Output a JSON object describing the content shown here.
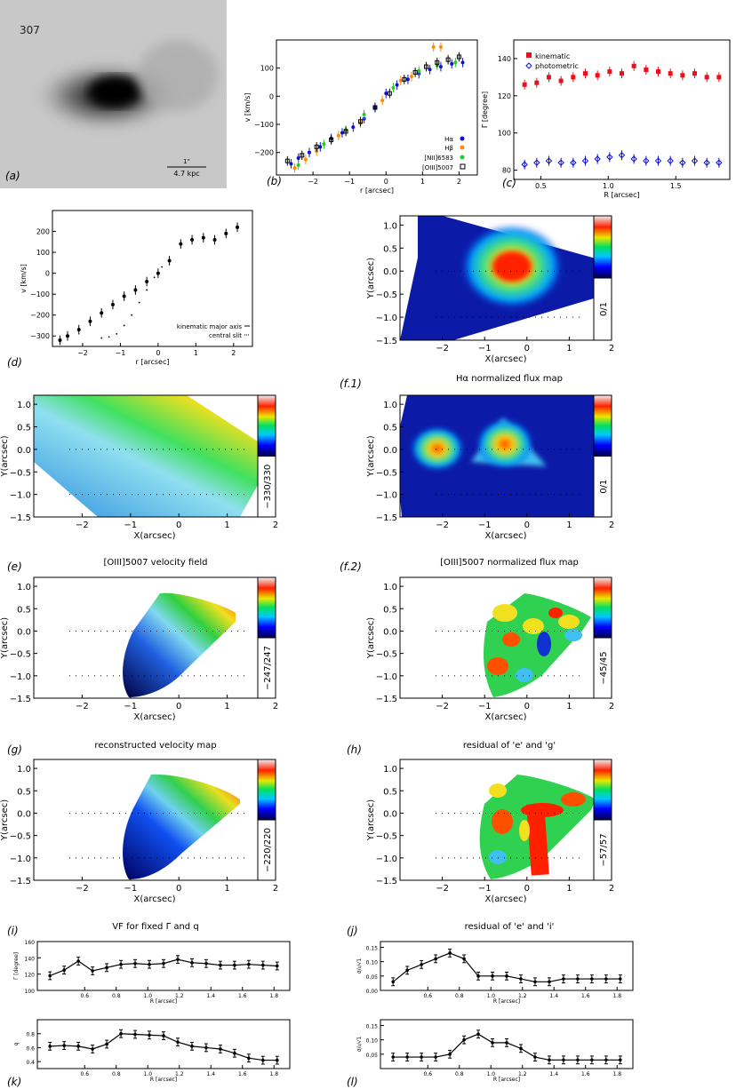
{
  "colors": {
    "red": "#e8101a",
    "orange": "#ff8c00",
    "green": "#22cc22",
    "blue": "#1010d0",
    "black": "#000000"
  },
  "panel_labels": {
    "a": "(a)",
    "b": "(b)",
    "c": "(c)",
    "d": "(d)",
    "f1": "(f.1)",
    "e": "(e)",
    "f2": "(f.2)",
    "g": "(g)",
    "h": "(h)",
    "i": "(i)",
    "j": "(j)",
    "k": "(k)",
    "l": "(l)"
  },
  "image_a": {
    "object_id": "307",
    "scale_top": "1\"",
    "scale_bottom": "4.7 kpc"
  },
  "map_titles": {
    "f1": "Hα normalized flux map",
    "e": "[OIII]5007 velocity field",
    "f2": "[OIII]5007 normalized flux map",
    "g": "reconstructed velocity map",
    "h": "residual of 'e' and 'g'",
    "i": "VF for fixed Γ and q",
    "j": "residual of 'e' and 'i'"
  },
  "map_labels": {
    "xlabel": "X(arcsec)",
    "ylabel": "Y(arcsec)",
    "xticks": [
      "−2",
      "−1",
      "0",
      "1",
      "2"
    ],
    "yticks": [
      "1.0",
      "0.5",
      "0.0",
      "−0.5",
      "−1.0",
      "−1.5"
    ]
  },
  "colorbar_ranges": {
    "f1": "0/1",
    "e": "−330/330",
    "f2": "0/1",
    "g": "−247/247",
    "h": "−45/45",
    "i": "−220/220",
    "j": "−57/57"
  },
  "chart_data": [
    {
      "id": "b",
      "type": "scatter",
      "xlabel": "r [arcsec]",
      "ylabel": "v [km/s]",
      "xlim": [
        -3,
        2.5
      ],
      "ylim": [
        -280,
        200
      ],
      "xticks": [
        "−2",
        "−1",
        "0",
        "1",
        "2"
      ],
      "yticks": [
        "−200",
        "−100",
        "0",
        "100"
      ],
      "series": [
        {
          "name": "Hα",
          "color": "#1010d0",
          "x": [
            -2.6,
            -2.4,
            -2.1,
            -1.8,
            -1.5,
            -1.2,
            -0.9,
            -0.6,
            -0.3,
            0.0,
            0.3,
            0.6,
            0.9,
            1.2,
            1.5,
            1.8,
            2.1
          ],
          "y": [
            -240,
            -220,
            -200,
            -180,
            -150,
            -130,
            -110,
            -80,
            -40,
            10,
            40,
            60,
            80,
            95,
            105,
            115,
            120
          ]
        },
        {
          "name": "Hβ",
          "color": "#ff8c00",
          "x": [
            -2.5,
            -2.2,
            -1.9,
            -1.3,
            -0.7,
            -0.1,
            0.4,
            0.7,
            1.3,
            1.5
          ],
          "y": [
            -255,
            -225,
            -195,
            -140,
            -95,
            -15,
            55,
            70,
            175,
            175
          ]
        },
        {
          "name": "[NII]6583",
          "color": "#22cc22",
          "x": [
            -2.4,
            -1.7,
            -1.1,
            -0.6,
            0.2,
            0.9,
            1.4,
            1.9
          ],
          "y": [
            -245,
            -170,
            -120,
            -65,
            30,
            90,
            110,
            120
          ]
        },
        {
          "name": "[OIII]5007",
          "color": "#000000",
          "x": [
            -2.7,
            -2.3,
            -1.9,
            -1.5,
            -1.1,
            -0.7,
            -0.3,
            0.1,
            0.5,
            0.8,
            1.1,
            1.4,
            1.7,
            2.0
          ],
          "y": [
            -230,
            -210,
            -180,
            -155,
            -125,
            -90,
            -40,
            10,
            60,
            85,
            105,
            120,
            130,
            140
          ]
        }
      ]
    },
    {
      "id": "c",
      "type": "scatter",
      "xlabel": "R [arcsec]",
      "ylabel": "Γ [degree]",
      "xlim": [
        0.3,
        1.9
      ],
      "ylim": [
        75,
        150
      ],
      "xticks": [
        "0.5",
        "1.0",
        "1.5"
      ],
      "yticks": [
        "80",
        "100",
        "120",
        "140"
      ],
      "series": [
        {
          "name": "kinematic",
          "color": "#e8101a",
          "x": [
            0.38,
            0.47,
            0.56,
            0.65,
            0.74,
            0.83,
            0.92,
            1.01,
            1.1,
            1.19,
            1.28,
            1.37,
            1.46,
            1.55,
            1.64,
            1.73,
            1.82
          ],
          "y": [
            126,
            127,
            130,
            128,
            130,
            132,
            131,
            133,
            132,
            136,
            134,
            133,
            132,
            131,
            132,
            130,
            130
          ]
        },
        {
          "name": "photometric",
          "color": "#1010d0",
          "x": [
            0.38,
            0.47,
            0.56,
            0.65,
            0.74,
            0.83,
            0.92,
            1.01,
            1.1,
            1.19,
            1.28,
            1.37,
            1.46,
            1.55,
            1.64,
            1.73,
            1.82
          ],
          "y": [
            83,
            84,
            85,
            84,
            84,
            85,
            86,
            87,
            88,
            86,
            85,
            85,
            85,
            84,
            85,
            84,
            84
          ]
        }
      ]
    },
    {
      "id": "d",
      "type": "scatter",
      "xlabel": "r [arcsec]",
      "ylabel": "v [km/s]",
      "xlim": [
        -2.8,
        2.5
      ],
      "ylim": [
        -350,
        300
      ],
      "xticks": [
        "−2",
        "−1",
        "0",
        "1",
        "2"
      ],
      "yticks": [
        "−300",
        "−200",
        "−100",
        "0",
        "100",
        "200"
      ],
      "series": [
        {
          "name": "kinematic major axis",
          "color": "#000000",
          "x": [
            -2.6,
            -2.4,
            -2.1,
            -1.8,
            -1.5,
            -1.2,
            -0.9,
            -0.6,
            -0.3,
            0.0,
            0.3,
            0.6,
            0.9,
            1.2,
            1.5,
            1.8,
            2.1
          ],
          "y": [
            -320,
            -300,
            -270,
            -230,
            -190,
            -150,
            -110,
            -80,
            -40,
            0,
            60,
            140,
            160,
            170,
            160,
            190,
            220
          ]
        },
        {
          "name": "central slit",
          "color": "#000000",
          "x": [
            -1.5,
            -1.3,
            -1.1,
            -0.9,
            -0.7,
            -0.5,
            -0.3,
            -0.1,
            0.1,
            0.3
          ],
          "y": [
            -310,
            -305,
            -290,
            -250,
            -200,
            -140,
            -80,
            -20,
            30,
            60
          ]
        }
      ]
    },
    {
      "id": "k1",
      "type": "line",
      "xlabel": "R [arcsec]",
      "ylabel": "Γ [degree]",
      "xlim": [
        0.3,
        1.9
      ],
      "ylim": [
        100,
        160
      ],
      "xticks": [
        "0.6",
        "0.8",
        "1.0",
        "1.2",
        "1.4",
        "1.6",
        "1.8"
      ],
      "yticks": [
        "100",
        "120",
        "140",
        "160"
      ],
      "x": [
        0.38,
        0.47,
        0.56,
        0.65,
        0.74,
        0.83,
        0.92,
        1.01,
        1.1,
        1.19,
        1.28,
        1.37,
        1.46,
        1.55,
        1.64,
        1.73,
        1.82
      ],
      "y": [
        118,
        125,
        136,
        124,
        128,
        132,
        133,
        132,
        133,
        138,
        134,
        133,
        131,
        131,
        132,
        131,
        130
      ]
    },
    {
      "id": "k2",
      "type": "line",
      "xlabel": "R [arcsec]",
      "ylabel": "q",
      "xlim": [
        0.3,
        1.9
      ],
      "ylim": [
        0.3,
        1.0
      ],
      "xticks": [
        "0.6",
        "0.8",
        "1.0",
        "1.2",
        "1.4",
        "1.6",
        "1.8"
      ],
      "yticks": [
        "0.4",
        "0.6",
        "0.8"
      ],
      "x": [
        0.38,
        0.47,
        0.56,
        0.65,
        0.74,
        0.83,
        0.92,
        1.01,
        1.1,
        1.19,
        1.28,
        1.37,
        1.46,
        1.55,
        1.64,
        1.73,
        1.82
      ],
      "y": [
        0.62,
        0.63,
        0.62,
        0.58,
        0.65,
        0.8,
        0.79,
        0.78,
        0.77,
        0.68,
        0.62,
        0.6,
        0.58,
        0.52,
        0.45,
        0.42,
        0.42
      ]
    },
    {
      "id": "l1",
      "type": "line",
      "xlabel": "R [arcsec]",
      "ylabel": "σ/ι/√1",
      "xlim": [
        0.3,
        1.9
      ],
      "ylim": [
        0,
        0.17
      ],
      "xticks": [
        "0.6",
        "0.8",
        "1.0",
        "1.2",
        "1.4",
        "1.6",
        "1.8"
      ],
      "yticks": [
        "0.00",
        "0.05",
        "0.10",
        "0.15"
      ],
      "x": [
        0.38,
        0.47,
        0.56,
        0.65,
        0.74,
        0.83,
        0.92,
        1.01,
        1.1,
        1.19,
        1.28,
        1.37,
        1.46,
        1.55,
        1.64,
        1.73,
        1.82
      ],
      "y": [
        0.03,
        0.07,
        0.09,
        0.11,
        0.13,
        0.11,
        0.05,
        0.05,
        0.05,
        0.04,
        0.03,
        0.03,
        0.04,
        0.04,
        0.04,
        0.04,
        0.04
      ]
    },
    {
      "id": "l2",
      "type": "line",
      "xlabel": "R [arcsec]",
      "ylabel": "σ/ι/√1",
      "xlim": [
        0.3,
        1.9
      ],
      "ylim": [
        0,
        0.17
      ],
      "xticks": [
        "0.6",
        "0.8",
        "1.0",
        "1.2",
        "1.4",
        "1.6",
        "1.8"
      ],
      "yticks": [
        "0.05",
        "0.10",
        "0.15"
      ],
      "x": [
        0.38,
        0.47,
        0.56,
        0.65,
        0.74,
        0.83,
        0.92,
        1.01,
        1.1,
        1.19,
        1.28,
        1.37,
        1.46,
        1.55,
        1.64,
        1.73,
        1.82
      ],
      "y": [
        0.04,
        0.04,
        0.04,
        0.04,
        0.05,
        0.1,
        0.12,
        0.09,
        0.09,
        0.07,
        0.04,
        0.03,
        0.03,
        0.03,
        0.03,
        0.03,
        0.03
      ]
    }
  ]
}
